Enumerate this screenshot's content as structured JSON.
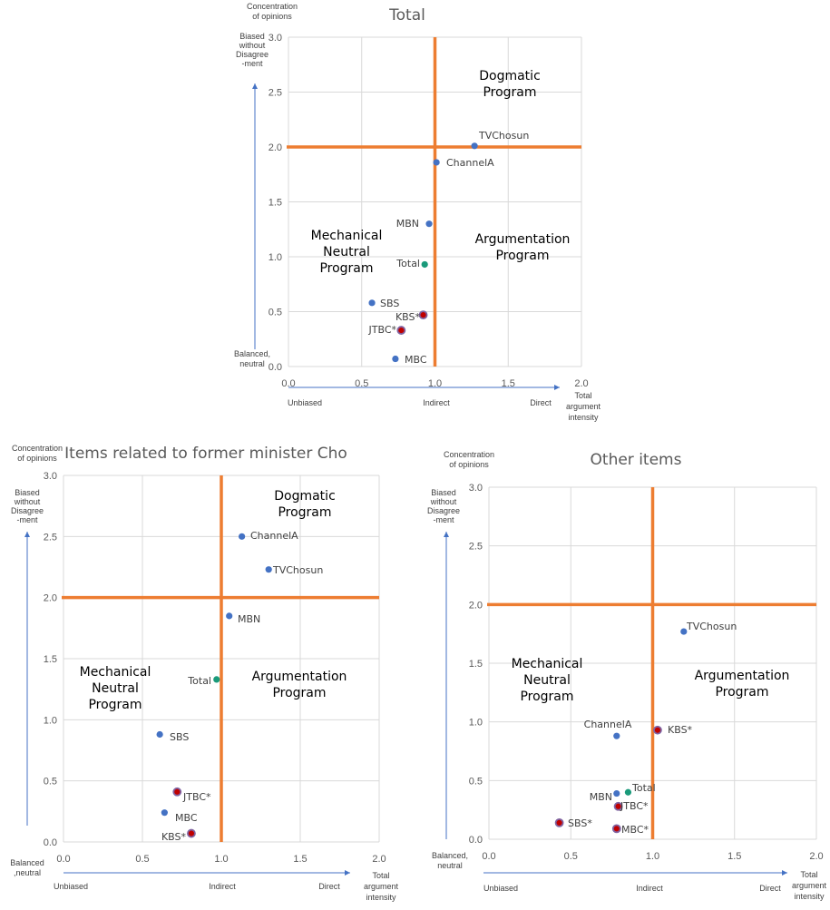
{
  "colors": {
    "threshold": "#ED7D31",
    "arrow": "#4472C4",
    "grid": "#D9D9D9",
    "point_blue": "#4472C4",
    "point_green": "#1A9A7A",
    "point_red_fill": "#C00000",
    "point_red_outline": "#8064A2"
  },
  "common": {
    "y_axis_label_lines": [
      "Concentration",
      "of opinions"
    ],
    "x_axis_label_lines": [
      "Total",
      "argument",
      "intensity"
    ],
    "y_top_lines": [
      "Biased",
      "without",
      "Disagree",
      "-ment"
    ],
    "unbiased": "Unbiased",
    "indirect": "Indirect",
    "direct": "Direct",
    "x_ticks": [
      "0.0",
      "0.5",
      "1.0",
      "1.5",
      "2.0"
    ],
    "y_ticks": [
      "0.0",
      "0.5",
      "1.0",
      "1.5",
      "2.0",
      "2.5",
      "3.0"
    ]
  },
  "chart_data": [
    {
      "type": "scatter",
      "title": "Total",
      "xlim": [
        0,
        2
      ],
      "ylim": [
        0,
        3
      ],
      "grid": true,
      "y_bottom_lines": [
        "Balanced,",
        "neutral"
      ],
      "thresholds": {
        "x": 1.0,
        "y": 2.0
      },
      "regions": [
        {
          "name": "dogmatic",
          "lines": [
            "Dogmatic",
            "Program"
          ]
        },
        {
          "name": "mechanical",
          "lines": [
            "Mechanical",
            "Neutral",
            "Program"
          ]
        },
        {
          "name": "argumentation",
          "lines": [
            "Argumentation",
            "Program"
          ]
        }
      ],
      "points": [
        {
          "label": "TVChosun",
          "x": 1.27,
          "y": 2.01,
          "kind": "blue"
        },
        {
          "label": "ChannelA",
          "x": 1.01,
          "y": 1.86,
          "kind": "blue"
        },
        {
          "label": "MBN",
          "x": 0.96,
          "y": 1.3,
          "kind": "blue"
        },
        {
          "label": "Total",
          "x": 0.93,
          "y": 0.93,
          "kind": "green"
        },
        {
          "label": "SBS",
          "x": 0.57,
          "y": 0.58,
          "kind": "blue"
        },
        {
          "label": "KBS*",
          "x": 0.92,
          "y": 0.47,
          "kind": "red"
        },
        {
          "label": "JTBC*",
          "x": 0.77,
          "y": 0.33,
          "kind": "red"
        },
        {
          "label": "MBC",
          "x": 0.73,
          "y": 0.07,
          "kind": "blue"
        }
      ]
    },
    {
      "type": "scatter",
      "title": "Items related to former minister Cho",
      "xlim": [
        0,
        2
      ],
      "ylim": [
        0,
        3
      ],
      "grid": true,
      "y_bottom_lines": [
        "Balanced",
        ",neutral"
      ],
      "thresholds": {
        "x": 1.0,
        "y": 2.0
      },
      "regions": [
        {
          "name": "dogmatic",
          "lines": [
            "Dogmatic",
            "Program"
          ]
        },
        {
          "name": "mechanical",
          "lines": [
            "Mechanical",
            "Neutral",
            "Program"
          ]
        },
        {
          "name": "argumentation",
          "lines": [
            "Argumentation",
            "Program"
          ]
        }
      ],
      "points": [
        {
          "label": "ChannelA",
          "x": 1.13,
          "y": 2.5,
          "kind": "blue"
        },
        {
          "label": "TVChosun",
          "x": 1.3,
          "y": 2.23,
          "kind": "blue"
        },
        {
          "label": "MBN",
          "x": 1.05,
          "y": 1.85,
          "kind": "blue"
        },
        {
          "label": "Total",
          "x": 0.97,
          "y": 1.33,
          "kind": "green"
        },
        {
          "label": "SBS",
          "x": 0.61,
          "y": 0.88,
          "kind": "blue"
        },
        {
          "label": "JTBC*",
          "x": 0.72,
          "y": 0.41,
          "kind": "red"
        },
        {
          "label": "MBC",
          "x": 0.64,
          "y": 0.24,
          "kind": "blue"
        },
        {
          "label": "KBS*",
          "x": 0.81,
          "y": 0.07,
          "kind": "red"
        }
      ]
    },
    {
      "type": "scatter",
      "title": "Other items",
      "xlim": [
        0,
        2
      ],
      "ylim": [
        0,
        3
      ],
      "grid": true,
      "y_bottom_lines": [
        "Balanced,",
        "neutral"
      ],
      "thresholds": {
        "x": 1.0,
        "y": 2.0
      },
      "regions": [
        {
          "name": "mechanical",
          "lines": [
            "Mechanical",
            "Neutral",
            "Program"
          ]
        },
        {
          "name": "argumentation",
          "lines": [
            "Argumentation",
            "Program"
          ]
        }
      ],
      "points": [
        {
          "label": "TVChosun",
          "x": 1.19,
          "y": 1.77,
          "kind": "blue"
        },
        {
          "label": "ChannelA",
          "x": 0.78,
          "y": 0.88,
          "kind": "blue"
        },
        {
          "label": "KBS*",
          "x": 1.03,
          "y": 0.93,
          "kind": "red"
        },
        {
          "label": "Total",
          "x": 0.85,
          "y": 0.4,
          "kind": "green"
        },
        {
          "label": "MBN",
          "x": 0.78,
          "y": 0.39,
          "kind": "blue"
        },
        {
          "label": "JTBC*",
          "x": 0.79,
          "y": 0.28,
          "kind": "red"
        },
        {
          "label": "SBS*",
          "x": 0.43,
          "y": 0.14,
          "kind": "red"
        },
        {
          "label": "MBC*",
          "x": 0.78,
          "y": 0.09,
          "kind": "red"
        }
      ]
    }
  ]
}
